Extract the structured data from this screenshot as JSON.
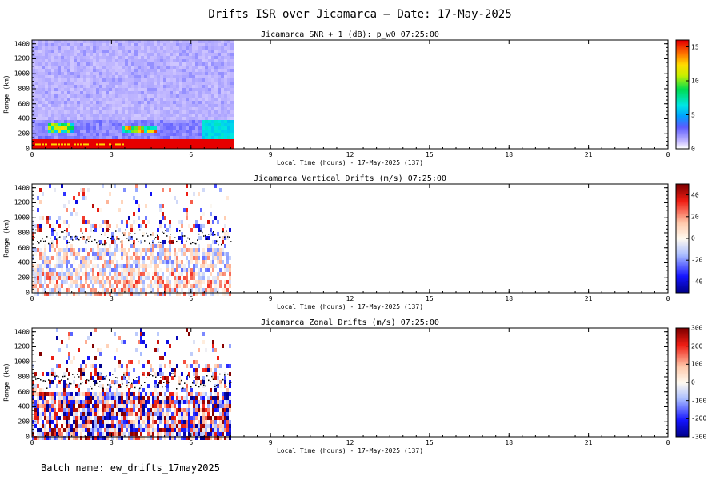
{
  "title": "Drifts ISR over Jicamarca — Date: 17-May-2025",
  "batch_label": "Batch name: ew_drifts_17may2025",
  "chart_data": [
    {
      "type": "heatmap",
      "title": "Jicamarca SNR + 1 (dB): p_w0 07:25:00",
      "xlabel": "Local Time (hours) - 17-May-2025 (137)",
      "ylabel": "Range (km)",
      "xlim": [
        0,
        24
      ],
      "ylim": [
        0,
        1450
      ],
      "x_ticks": [
        "0",
        "3",
        "6",
        "9",
        "12",
        "15",
        "18",
        "21",
        "0"
      ],
      "y_ticks": [
        0,
        200,
        400,
        600,
        800,
        1000,
        1200,
        1400
      ],
      "colorbar": {
        "range": [
          0,
          16
        ],
        "ticks": [
          "0",
          "5",
          "10",
          "15"
        ],
        "colormap": "rainbow-from-white"
      },
      "data_extent_hours": [
        0,
        7.5
      ],
      "features": [
        {
          "region": "0-150 km, 0-7.5 h",
          "value": 16
        },
        {
          "region": "layer ~250-350 km near 0.5-1.5 h",
          "value": 10
        },
        {
          "region": "layer ~250-300 km near 3.3-4.5 h",
          "value": 12
        },
        {
          "region": "background 400-1450 km",
          "value": 1
        }
      ]
    },
    {
      "type": "heatmap",
      "title": "Jicamarca Vertical Drifts (m/s) 07:25:00",
      "xlabel": "Local Time (hours) - 17-May-2025 (137)",
      "ylabel": "Range (km)",
      "xlim": [
        0,
        24
      ],
      "ylim": [
        0,
        1450
      ],
      "x_ticks": [
        "0",
        "3",
        "6",
        "9",
        "12",
        "15",
        "18",
        "21",
        "0"
      ],
      "y_ticks": [
        0,
        200,
        400,
        600,
        800,
        1000,
        1200,
        1400
      ],
      "colorbar": {
        "range": [
          -50,
          50
        ],
        "ticks": [
          "-40",
          "-20",
          "0",
          "20",
          "40"
        ],
        "colormap": "blue-white-red"
      },
      "data_extent_hours": [
        0,
        7.5
      ]
    },
    {
      "type": "heatmap",
      "title": "Jicamarca Zonal Drifts (m/s) 07:25:00",
      "xlabel": "Local Time (hours) - 17-May-2025 (137)",
      "ylabel": "Range (km)",
      "xlim": [
        0,
        24
      ],
      "ylim": [
        0,
        1450
      ],
      "x_ticks": [
        "0",
        "3",
        "6",
        "9",
        "12",
        "15",
        "18",
        "21",
        "0"
      ],
      "y_ticks": [
        0,
        200,
        400,
        600,
        800,
        1000,
        1200,
        1400
      ],
      "colorbar": {
        "range": [
          -300,
          300
        ],
        "ticks": [
          "-300",
          "-200",
          "-100",
          "0",
          "100",
          "200",
          "300"
        ],
        "colormap": "blue-white-red"
      },
      "data_extent_hours": [
        0,
        7.5
      ]
    }
  ]
}
